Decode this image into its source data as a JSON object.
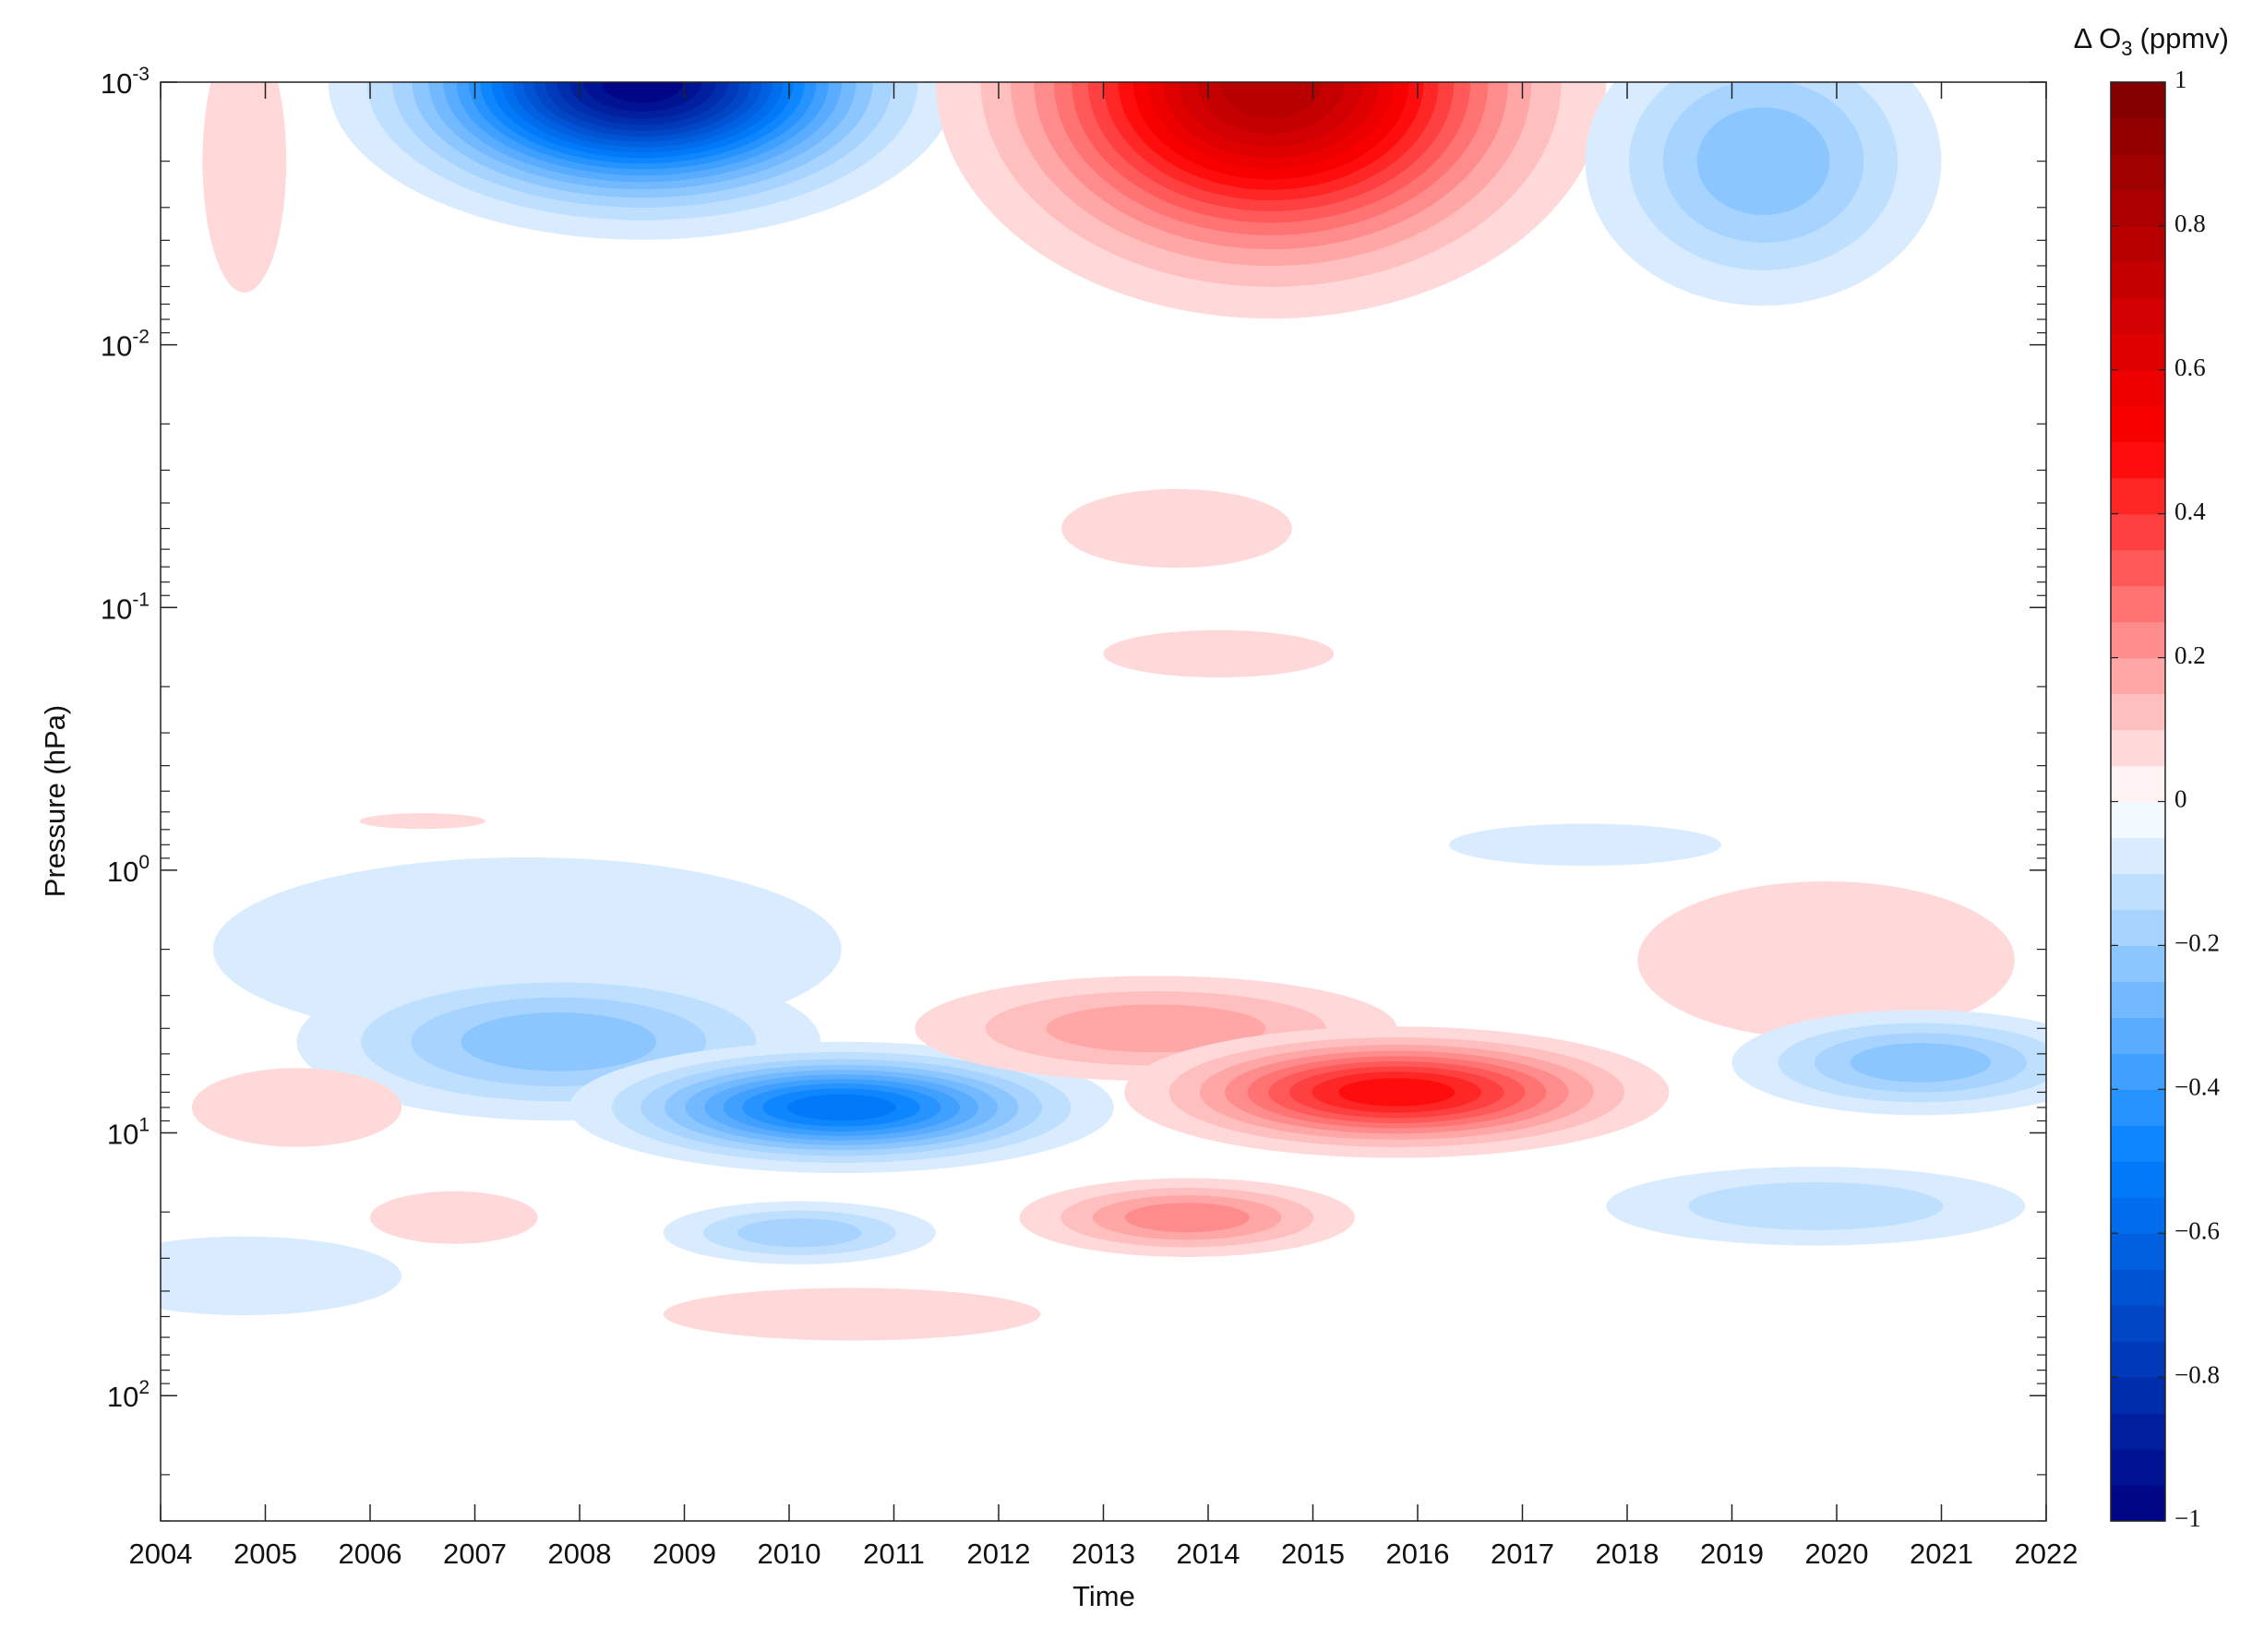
{
  "chart_data": {
    "type": "contour",
    "xlabel": "Time",
    "ylabel": "Pressure (hPa)",
    "colorbar_label": [
      "Δ O",
      "3",
      "(ppmv)"
    ],
    "xlim": [
      2004,
      2022
    ],
    "xticks": [
      2004,
      2005,
      2006,
      2007,
      2008,
      2009,
      2010,
      2011,
      2012,
      2013,
      2014,
      2015,
      2016,
      2017,
      2018,
      2019,
      2020,
      2021,
      2022
    ],
    "ylim": [
      0.001,
      300
    ],
    "ylog": true,
    "yreverse": true,
    "yminor": true,
    "yticks": [
      {
        "value": 0.001,
        "label": "10",
        "exponent": "-3"
      },
      {
        "value": 0.01,
        "label": "10",
        "exponent": "-2"
      },
      {
        "value": 0.1,
        "label": "10",
        "exponent": "-1"
      },
      {
        "value": 1,
        "label": "10",
        "exponent": "0"
      },
      {
        "value": 10,
        "label": "10",
        "exponent": "1"
      },
      {
        "value": 100,
        "label": "10",
        "exponent": "2"
      }
    ],
    "clim": [
      -1,
      1
    ],
    "clevel_step": 0.05,
    "colormap": [
      "#00007f",
      "#0080ff",
      "#ffffff",
      "#ff0000",
      "#7f0000"
    ],
    "cticks": [
      {
        "value": -1,
        "label": "−1"
      },
      {
        "value": -0.8,
        "label": "−0.8"
      },
      {
        "value": -0.6,
        "label": "−0.6"
      },
      {
        "value": -0.4,
        "label": "−0.4"
      },
      {
        "value": -0.2,
        "label": "−0.2"
      },
      0,
      0.2,
      0.4,
      0.6,
      0.8,
      1
    ],
    "anomalies": [
      {
        "x": 2007.5,
        "y": 2,
        "value": -0.07,
        "width": 3,
        "height": 0.35
      },
      {
        "x": 2008.6,
        "y": 0.001,
        "value": -1,
        "width": 3,
        "height": 0.6
      },
      {
        "x": 2014.6,
        "y": 0.001,
        "value": 0.8,
        "width": 3.2,
        "height": 0.9
      },
      {
        "x": 2019.3,
        "y": 0.002,
        "value": -0.25,
        "width": 1.7,
        "height": 0.55
      },
      {
        "x": 2004.8,
        "y": 0.002,
        "value": 0.1,
        "width": 0.4,
        "height": 0.5
      },
      {
        "x": 2013.7,
        "y": 0.05,
        "value": 0.07,
        "width": 1.1,
        "height": 0.15
      },
      {
        "x": 2014.1,
        "y": 0.15,
        "value": 0.07,
        "width": 1.1,
        "height": 0.09
      },
      {
        "x": 2007.8,
        "y": 4.5,
        "value": -0.25,
        "width": 2.5,
        "height": 0.3
      },
      {
        "x": 2010.5,
        "y": 8,
        "value": -0.55,
        "width": 2.6,
        "height": 0.25
      },
      {
        "x": 2013.5,
        "y": 4,
        "value": 0.2,
        "width": 2.3,
        "height": 0.2
      },
      {
        "x": 2015.8,
        "y": 7,
        "value": 0.5,
        "width": 2.6,
        "height": 0.25
      },
      {
        "x": 2019.9,
        "y": 2.2,
        "value": 0.1,
        "width": 1.8,
        "height": 0.3
      },
      {
        "x": 2020.8,
        "y": 5.4,
        "value": -0.25,
        "width": 1.8,
        "height": 0.2
      },
      {
        "x": 2005.3,
        "y": 8,
        "value": 0.08,
        "width": 1,
        "height": 0.15
      },
      {
        "x": 2019.8,
        "y": 19,
        "value": -0.15,
        "width": 2,
        "height": 0.15
      },
      {
        "x": 2013.8,
        "y": 21,
        "value": 0.25,
        "width": 1.6,
        "height": 0.15
      },
      {
        "x": 2010.1,
        "y": 24,
        "value": -0.2,
        "width": 1.3,
        "height": 0.12
      },
      {
        "x": 2006.8,
        "y": 21,
        "value": 0.1,
        "width": 0.8,
        "height": 0.1
      },
      {
        "x": 2010.6,
        "y": 49,
        "value": 0.07,
        "width": 1.8,
        "height": 0.1
      },
      {
        "x": 2004.8,
        "y": 35,
        "value": -0.07,
        "width": 1.5,
        "height": 0.15
      },
      {
        "x": 2017.6,
        "y": 0.8,
        "value": -0.07,
        "width": 1.3,
        "height": 0.08
      },
      {
        "x": 2006.5,
        "y": 0.65,
        "value": 0.07,
        "width": 0.6,
        "height": 0.03
      }
    ]
  }
}
